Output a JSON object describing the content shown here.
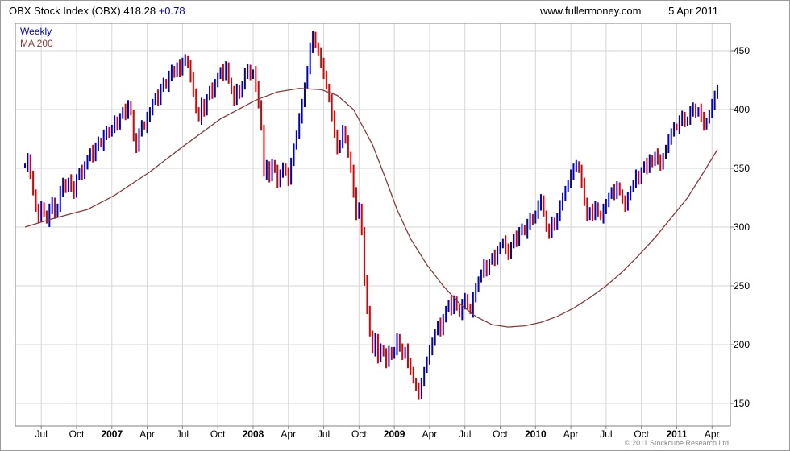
{
  "header": {
    "title": "OBX Stock Index (OBX) 418.28",
    "change": "+0.78",
    "website": "www.fullermoney.com",
    "date": "5 Apr 2011"
  },
  "legend": {
    "series1": "Weekly",
    "series2": "MA 200"
  },
  "footer": {
    "copyright": "© 2011 Stockcube Research Ltd"
  },
  "colors": {
    "up_bar": "#0000cc",
    "down_bar": "#dd0000",
    "ma_line": "#8b3a3a",
    "grid": "#d6d6d6",
    "plot_border": "#808080",
    "axis_text": "#000000",
    "change_text": "#0000cc"
  },
  "chart_data": {
    "type": "candlestick",
    "title": "OBX Stock Index (OBX)",
    "frequency": "Weekly",
    "last_close": 418.28,
    "change": 0.78,
    "as_of_date": "5 Apr 2011",
    "y_ticks": [
      150,
      200,
      250,
      300,
      350,
      400,
      450
    ],
    "ylim": [
      131,
      473
    ],
    "x_tick_labels": [
      "Jul",
      "Oct",
      "2007",
      "Apr",
      "Jul",
      "Oct",
      "2008",
      "Apr",
      "Jul",
      "Oct",
      "2009",
      "Apr",
      "Jul",
      "Oct",
      "2010",
      "Apr",
      "Jul",
      "Oct",
      "2011",
      "Apr"
    ],
    "first_tick_week": 6,
    "weeks_per_tick": 13,
    "grid": true,
    "legend_position": "top-left",
    "weekly_closes": [
      352,
      358,
      345,
      330,
      315,
      308,
      318,
      312,
      305,
      315,
      322,
      310,
      318,
      330,
      338,
      332,
      340,
      335,
      328,
      342,
      348,
      345,
      352,
      358,
      365,
      360,
      368,
      374,
      370,
      378,
      382,
      379,
      385,
      390,
      386,
      394,
      400,
      396,
      404,
      398,
      375,
      368,
      380,
      388,
      385,
      393,
      398,
      406,
      412,
      408,
      418,
      424,
      420,
      428,
      434,
      430,
      438,
      433,
      440,
      444,
      437,
      428,
      415,
      400,
      392,
      405,
      398,
      410,
      418,
      414,
      422,
      428,
      434,
      429,
      437,
      425,
      415,
      408,
      418,
      412,
      422,
      430,
      435,
      428,
      432,
      420,
      405,
      385,
      345,
      352,
      342,
      355,
      348,
      338,
      345,
      352,
      346,
      340,
      355,
      368,
      380,
      392,
      405,
      420,
      435,
      452,
      463,
      455,
      448,
      440,
      430,
      420,
      408,
      395,
      380,
      365,
      372,
      382,
      375,
      362,
      348,
      330,
      310,
      318,
      295,
      255,
      230,
      210,
      195,
      205,
      188,
      198,
      192,
      185,
      195,
      190,
      196,
      205,
      198,
      190,
      196,
      185,
      178,
      170,
      163,
      158,
      168,
      178,
      188,
      195,
      202,
      210,
      218,
      212,
      222,
      230,
      236,
      230,
      238,
      232,
      226,
      234,
      240,
      233,
      228,
      240,
      248,
      255,
      262,
      268,
      262,
      270,
      276,
      272,
      280,
      284,
      288,
      282,
      276,
      284,
      292,
      288,
      296,
      300,
      295,
      302,
      308,
      305,
      312,
      318,
      324,
      312,
      298,
      295,
      305,
      300,
      310,
      318,
      325,
      332,
      338,
      344,
      350,
      354,
      348,
      338,
      322,
      308,
      315,
      310,
      318,
      312,
      308,
      315,
      320,
      326,
      332,
      328,
      335,
      330,
      322,
      318,
      326,
      332,
      338,
      344,
      340,
      348,
      354,
      350,
      358,
      354,
      362,
      358,
      352,
      360,
      368,
      374,
      380,
      386,
      384,
      390,
      395,
      388,
      392,
      398,
      402,
      396,
      400,
      394,
      386,
      390,
      398,
      404,
      412,
      418.28
    ],
    "ma_200": {
      "label": "MA 200",
      "anchors": [
        [
          0,
          300
        ],
        [
          10,
          307
        ],
        [
          23,
          315
        ],
        [
          33,
          327
        ],
        [
          46,
          347
        ],
        [
          59,
          370
        ],
        [
          72,
          392
        ],
        [
          85,
          408
        ],
        [
          93,
          415
        ],
        [
          101,
          418
        ],
        [
          109,
          417
        ],
        [
          115,
          412
        ],
        [
          121,
          400
        ],
        [
          128,
          370
        ],
        [
          133,
          340
        ],
        [
          137,
          315
        ],
        [
          142,
          290
        ],
        [
          148,
          268
        ],
        [
          154,
          250
        ],
        [
          160,
          235
        ],
        [
          166,
          224
        ],
        [
          172,
          217
        ],
        [
          178,
          215
        ],
        [
          184,
          216
        ],
        [
          190,
          219
        ],
        [
          196,
          224
        ],
        [
          202,
          231
        ],
        [
          208,
          240
        ],
        [
          214,
          250
        ],
        [
          220,
          262
        ],
        [
          226,
          276
        ],
        [
          232,
          291
        ],
        [
          238,
          308
        ],
        [
          244,
          325
        ],
        [
          250,
          347
        ],
        [
          255,
          366
        ]
      ]
    }
  }
}
